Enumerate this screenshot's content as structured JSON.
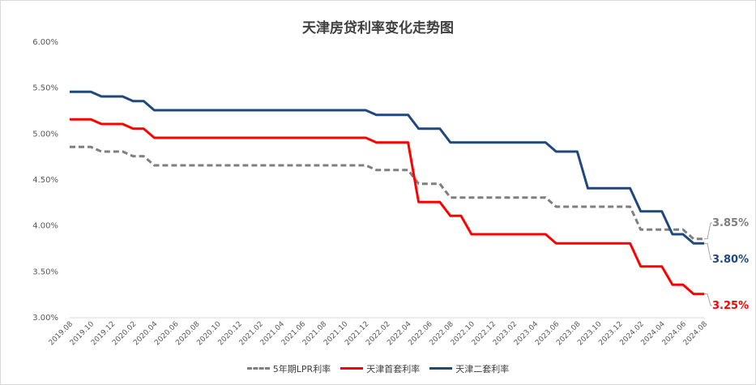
{
  "chart_data": {
    "type": "line",
    "title": "天津房贷利率变化走势图",
    "xlabel": "",
    "ylabel": "",
    "ylim": [
      3.0,
      6.0
    ],
    "yticks": [
      "6.00%",
      "5.50%",
      "5.00%",
      "4.50%",
      "4.00%",
      "3.50%",
      "3.00%"
    ],
    "x": [
      "2019.08",
      "2019.09",
      "2019.10",
      "2019.11",
      "2019.12",
      "2020.01",
      "2020.02",
      "2020.03",
      "2020.04",
      "2020.05",
      "2020.06",
      "2020.07",
      "2020.08",
      "2020.09",
      "2020.10",
      "2020.11",
      "2020.12",
      "2021.01",
      "2021.02",
      "2021.03",
      "2021.04",
      "2021.05",
      "2021.06",
      "2021.07",
      "2021.08",
      "2021.09",
      "2021.10",
      "2021.11",
      "2021.12",
      "2022.01",
      "2022.02",
      "2022.03",
      "2022.04",
      "2022.05",
      "2022.06",
      "2022.07",
      "2022.08",
      "2022.09",
      "2022.10",
      "2022.11",
      "2022.12",
      "2023.01",
      "2023.02",
      "2023.03",
      "2023.04",
      "2023.05",
      "2023.06",
      "2023.07",
      "2023.08",
      "2023.09",
      "2023.10",
      "2023.11",
      "2023.12",
      "2024.01",
      "2024.02",
      "2024.03",
      "2024.04",
      "2024.05",
      "2024.06",
      "2024.07",
      "2024.08"
    ],
    "xtick_labels": [
      "2019.08",
      "2019.10",
      "2019.12",
      "2020.02",
      "2020.04",
      "2020.06",
      "2020.08",
      "2020.10",
      "2020.12",
      "2021.02",
      "2021.04",
      "2021.06",
      "2021.08",
      "2021.10",
      "2021.12",
      "2022.02",
      "2022.04",
      "2022.06",
      "2022.08",
      "2022.10",
      "2022.12",
      "2023.02",
      "2023.04",
      "2023.06",
      "2023.08",
      "2023.10",
      "2023.12",
      "2024.02",
      "2024.04",
      "2024.06",
      "2024.08"
    ],
    "series": [
      {
        "name": "5年期LPR利率",
        "color": "#7f7f7f",
        "dash": true,
        "end_label": "3.85%",
        "values": [
          4.85,
          4.85,
          4.85,
          4.8,
          4.8,
          4.8,
          4.75,
          4.75,
          4.65,
          4.65,
          4.65,
          4.65,
          4.65,
          4.65,
          4.65,
          4.65,
          4.65,
          4.65,
          4.65,
          4.65,
          4.65,
          4.65,
          4.65,
          4.65,
          4.65,
          4.65,
          4.65,
          4.65,
          4.65,
          4.6,
          4.6,
          4.6,
          4.6,
          4.45,
          4.45,
          4.45,
          4.3,
          4.3,
          4.3,
          4.3,
          4.3,
          4.3,
          4.3,
          4.3,
          4.3,
          4.3,
          4.2,
          4.2,
          4.2,
          4.2,
          4.2,
          4.2,
          4.2,
          4.2,
          3.95,
          3.95,
          3.95,
          3.95,
          3.95,
          3.85,
          3.85
        ]
      },
      {
        "name": "天津首套利率",
        "color": "#ff0000",
        "dash": false,
        "end_label": "3.25%",
        "values": [
          5.15,
          5.15,
          5.15,
          5.1,
          5.1,
          5.1,
          5.05,
          5.05,
          4.95,
          4.95,
          4.95,
          4.95,
          4.95,
          4.95,
          4.95,
          4.95,
          4.95,
          4.95,
          4.95,
          4.95,
          4.95,
          4.95,
          4.95,
          4.95,
          4.95,
          4.95,
          4.95,
          4.95,
          4.95,
          4.9,
          4.9,
          4.9,
          4.9,
          4.25,
          4.25,
          4.25,
          4.1,
          4.1,
          3.9,
          3.9,
          3.9,
          3.9,
          3.9,
          3.9,
          3.9,
          3.9,
          3.8,
          3.8,
          3.8,
          3.8,
          3.8,
          3.8,
          3.8,
          3.8,
          3.55,
          3.55,
          3.55,
          3.35,
          3.35,
          3.25,
          3.25
        ]
      },
      {
        "name": "天津二套利率",
        "color": "#1f497d",
        "dash": false,
        "end_label": "3.80%",
        "values": [
          5.45,
          5.45,
          5.45,
          5.4,
          5.4,
          5.4,
          5.35,
          5.35,
          5.25,
          5.25,
          5.25,
          5.25,
          5.25,
          5.25,
          5.25,
          5.25,
          5.25,
          5.25,
          5.25,
          5.25,
          5.25,
          5.25,
          5.25,
          5.25,
          5.25,
          5.25,
          5.25,
          5.25,
          5.25,
          5.2,
          5.2,
          5.2,
          5.2,
          5.05,
          5.05,
          5.05,
          4.9,
          4.9,
          4.9,
          4.9,
          4.9,
          4.9,
          4.9,
          4.9,
          4.9,
          4.9,
          4.8,
          4.8,
          4.8,
          4.4,
          4.4,
          4.4,
          4.4,
          4.4,
          4.15,
          4.15,
          4.15,
          3.9,
          3.9,
          3.8,
          3.8
        ]
      }
    ],
    "legend_position": "bottom",
    "grid": false
  }
}
